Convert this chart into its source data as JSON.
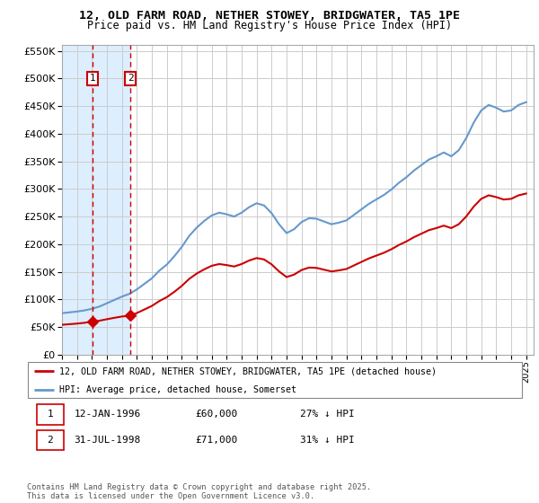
{
  "title_line1": "12, OLD FARM ROAD, NETHER STOWEY, BRIDGWATER, TA5 1PE",
  "title_line2": "Price paid vs. HM Land Registry's House Price Index (HPI)",
  "sale1_date_x": 1996.04,
  "sale1_price": 60000,
  "sale2_date_x": 1998.58,
  "sale2_price": 71000,
  "sale1_label": "1",
  "sale2_label": "2",
  "legend_line1": "12, OLD FARM ROAD, NETHER STOWEY, BRIDGWATER, TA5 1PE (detached house)",
  "legend_line2": "HPI: Average price, detached house, Somerset",
  "table_row1": [
    "1",
    "12-JAN-1996",
    "£60,000",
    "27% ↓ HPI"
  ],
  "table_row2": [
    "2",
    "31-JUL-1998",
    "£71,000",
    "31% ↓ HPI"
  ],
  "footnote": "Contains HM Land Registry data © Crown copyright and database right 2025.\nThis data is licensed under the Open Government Licence v3.0.",
  "red_color": "#cc0000",
  "blue_color": "#6699cc",
  "shade_color": "#ddeeff",
  "ylim_max": 560000,
  "ylim_min": 0,
  "background_color": "#ffffff",
  "grid_color": "#cccccc",
  "sale1_vertical_x": 1996.04,
  "sale2_vertical_x": 1998.58,
  "xmin": 1994,
  "xmax": 2025.5,
  "hpi_years": [
    1994.0,
    1994.5,
    1995.0,
    1995.5,
    1996.0,
    1996.5,
    1997.0,
    1997.5,
    1998.0,
    1998.5,
    1999.0,
    1999.5,
    2000.0,
    2000.5,
    2001.0,
    2001.5,
    2002.0,
    2002.5,
    2003.0,
    2003.5,
    2004.0,
    2004.5,
    2005.0,
    2005.5,
    2006.0,
    2006.5,
    2007.0,
    2007.5,
    2008.0,
    2008.5,
    2009.0,
    2009.5,
    2010.0,
    2010.5,
    2011.0,
    2011.5,
    2012.0,
    2012.5,
    2013.0,
    2013.5,
    2014.0,
    2014.5,
    2015.0,
    2015.5,
    2016.0,
    2016.5,
    2017.0,
    2017.5,
    2018.0,
    2018.5,
    2019.0,
    2019.5,
    2020.0,
    2020.5,
    2021.0,
    2021.5,
    2022.0,
    2022.5,
    2023.0,
    2023.5,
    2024.0,
    2024.5,
    2025.0
  ],
  "hpi_values": [
    75000,
    76500,
    78000,
    80000,
    83000,
    87000,
    93000,
    99000,
    105000,
    110000,
    118000,
    128000,
    138000,
    152000,
    163000,
    178000,
    195000,
    215000,
    230000,
    242000,
    252000,
    257000,
    254000,
    250000,
    257000,
    267000,
    274000,
    270000,
    256000,
    236000,
    220000,
    227000,
    240000,
    247000,
    246000,
    241000,
    236000,
    239000,
    243000,
    253000,
    263000,
    273000,
    281000,
    289000,
    299000,
    311000,
    321000,
    333000,
    343000,
    353000,
    359000,
    366000,
    359000,
    370000,
    392000,
    420000,
    442000,
    452000,
    447000,
    440000,
    442000,
    452000,
    457000
  ]
}
